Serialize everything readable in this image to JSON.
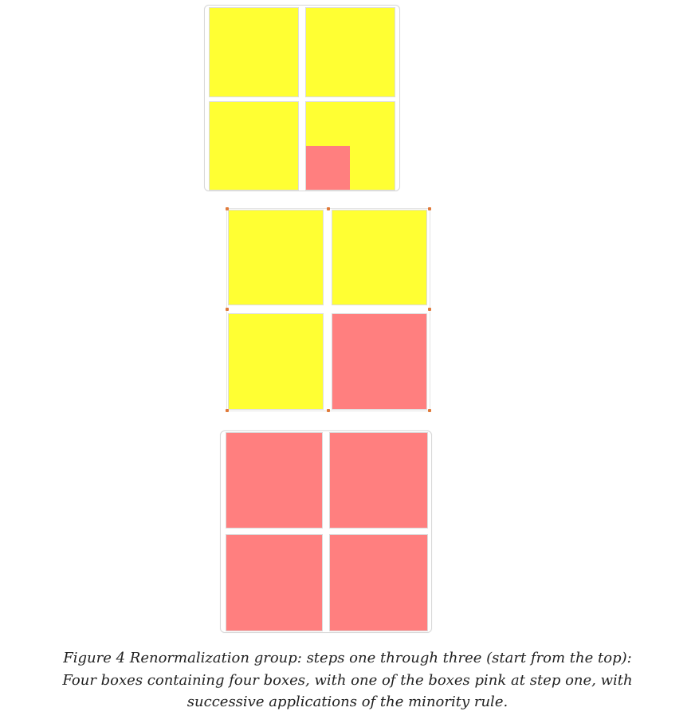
{
  "colors": {
    "yellow": "#ffff33",
    "pink": "#ff7f7f",
    "handle": "#e07a3a"
  },
  "step1": {
    "cells": [
      "yellow",
      "yellow",
      "yellow",
      "yellow-with-pink-subbox"
    ]
  },
  "step2": {
    "cells": [
      "yellow",
      "yellow",
      "yellow",
      "pink"
    ]
  },
  "step3": {
    "cells": [
      "pink",
      "pink",
      "pink",
      "pink"
    ]
  },
  "caption": {
    "line1": "Figure 4 Renormalization group: steps one through three (start from the top):",
    "line2": "Four boxes containing four boxes, with one of the boxes pink at step one, with",
    "line3": "successive applications of the minority rule."
  }
}
